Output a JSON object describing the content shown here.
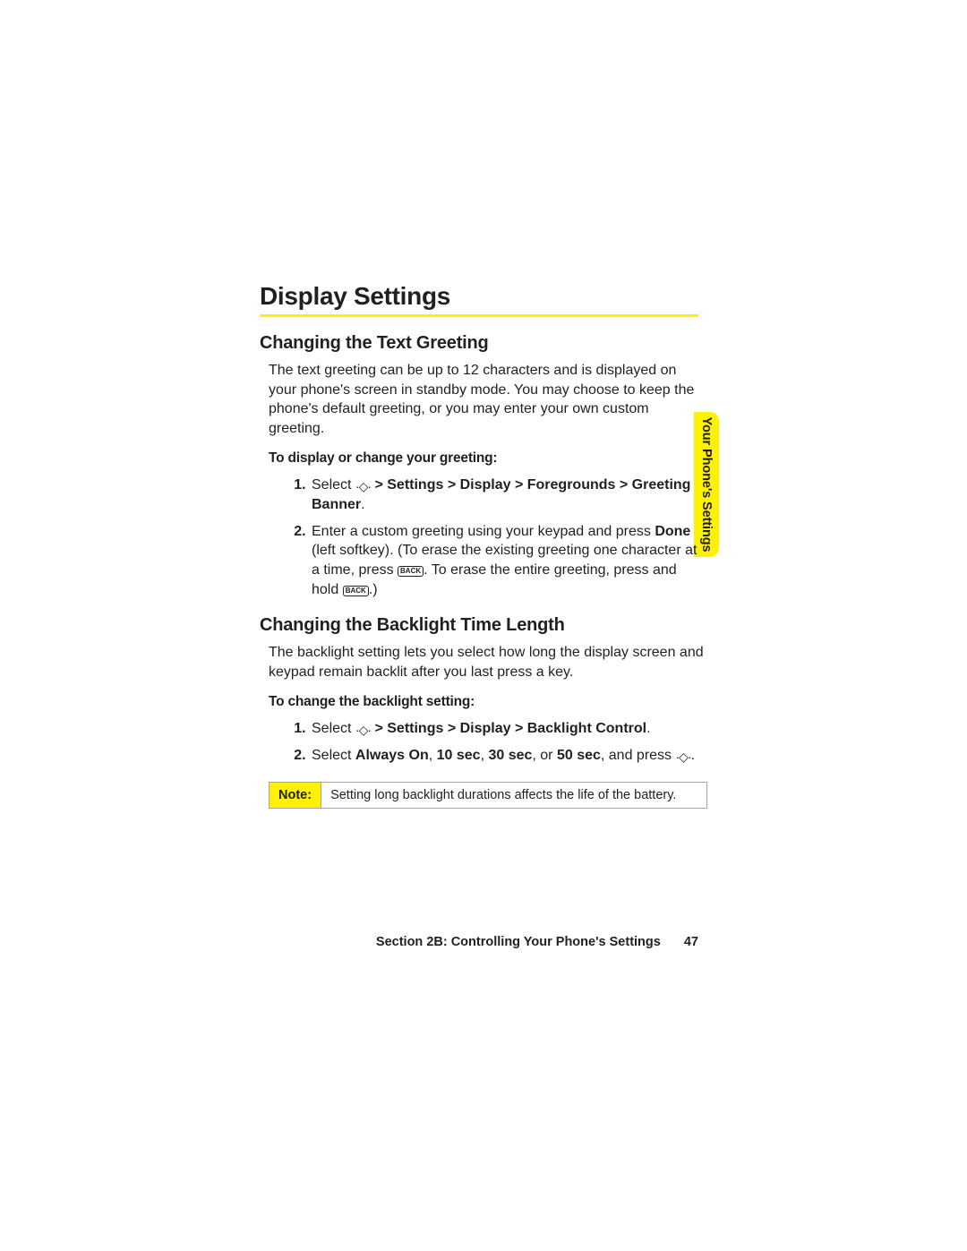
{
  "colors": {
    "accent": "#fff200",
    "text": "#231f20",
    "rule_gray": "#a7a5a6",
    "background": "#ffffff"
  },
  "title": "Display Settings",
  "sideTab": "Your Phone's Settings",
  "section1": {
    "heading": "Changing the Text Greeting",
    "intro": "The text greeting can be up to 12 characters and is displayed on your phone's screen in standby mode. You may choose to keep the phone's default greeting, or you may enter your own custom greeting.",
    "lead": "To display or change your greeting:",
    "step1_prefix": "Select ",
    "step1_bold": " > Settings > Display > Foregrounds > Greeting Banner",
    "step1_suffix": ".",
    "step2_a": "Enter a custom greeting using your keypad and press ",
    "step2_done": "Done",
    "step2_b": " (left softkey).   (To erase the existing greeting one character at a time, press ",
    "step2_key": "BACK",
    "step2_c": ". To erase the entire greeting, press and hold ",
    "step2_d": ".)"
  },
  "section2": {
    "heading": "Changing the Backlight Time Length",
    "intro": "The backlight setting lets you select how long the display screen and keypad remain backlit after you last press a key.",
    "lead": "To change the backlight setting:",
    "step1_prefix": "Select ",
    "step1_bold": " > Settings > Display > Backlight Control",
    "step1_suffix": ".",
    "step2_a": "Select ",
    "step2_opt1": "Always On",
    "step2_sep": ", ",
    "step2_opt2": "10 sec",
    "step2_opt3": "30 sec",
    "step2_or": ", or ",
    "step2_opt4": "50 sec",
    "step2_b": ", and press ",
    "step2_c": "."
  },
  "note": {
    "label": "Note:",
    "text": "Setting long backlight durations affects the life of the battery."
  },
  "footer": {
    "section": "Section 2B: Controlling Your Phone's Settings",
    "page": "47"
  }
}
